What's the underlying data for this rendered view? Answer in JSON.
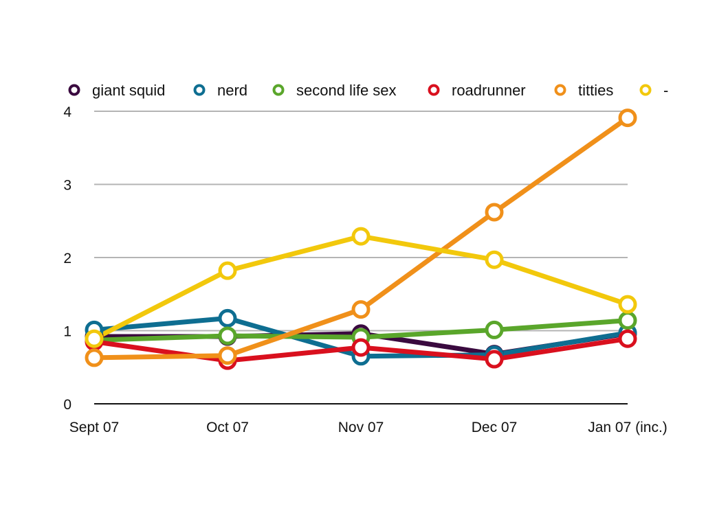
{
  "chart_data": {
    "type": "line",
    "title": "",
    "xlabel": "",
    "ylabel": "",
    "categories": [
      "Sept 07",
      "Oct 07",
      "Nov 07",
      "Dec 07",
      "Jan 07 (inc.)"
    ],
    "ylim": [
      0,
      4
    ],
    "yticks": [
      "0",
      "1",
      "2",
      "3",
      "4"
    ],
    "grid": true,
    "legend_position": "top",
    "series": [
      {
        "name": "giant squid",
        "color": "#3a0a3f",
        "values": [
          0.92,
          0.92,
          0.96,
          0.68,
          0.96
        ]
      },
      {
        "name": "nerd",
        "color": "#0e6e91",
        "values": [
          1.01,
          1.17,
          0.65,
          0.67,
          0.97
        ]
      },
      {
        "name": "second life sex",
        "color": "#5aa62b",
        "values": [
          0.87,
          0.93,
          0.91,
          1.01,
          1.14
        ]
      },
      {
        "name": "roadrunner",
        "color": "#d9101e",
        "values": [
          0.85,
          0.59,
          0.77,
          0.61,
          0.89
        ]
      },
      {
        "name": "titties",
        "color": "#f0901a",
        "values": [
          0.63,
          0.66,
          1.29,
          2.62,
          3.91
        ]
      },
      {
        "name": "-",
        "color": "#f2c80c",
        "values": [
          0.89,
          1.82,
          2.29,
          1.97,
          1.36
        ]
      }
    ]
  }
}
